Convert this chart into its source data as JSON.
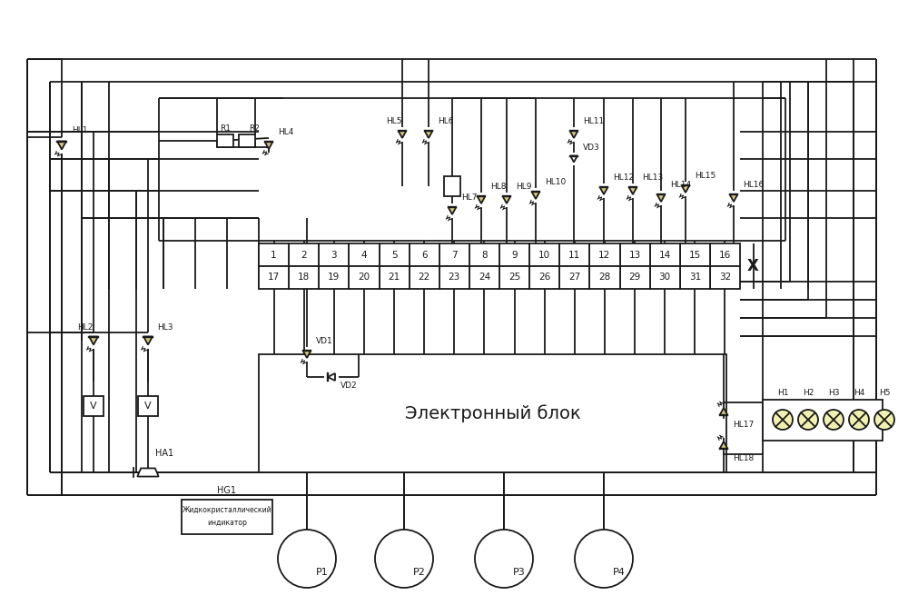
{
  "bg_color": "#ffffff",
  "lc": "#1a1a1a",
  "led_fill": "#d4c87a",
  "connector_numbers_top": [
    16,
    15,
    14,
    13,
    12,
    11,
    10,
    9,
    8,
    7,
    6,
    5,
    4,
    3,
    2,
    1
  ],
  "connector_numbers_bottom": [
    32,
    31,
    30,
    29,
    28,
    27,
    26,
    25,
    24,
    23,
    22,
    21,
    20,
    19,
    18,
    17
  ],
  "eb_label": "Электронный блок",
  "hg1_line1": "Жидкокристаллический",
  "hg1_line2": "индикатор",
  "gauges": [
    "P1",
    "P2",
    "P3",
    "P4"
  ],
  "lamps": [
    "H1",
    "H2",
    "H3",
    "H4",
    "H5"
  ],
  "lw": 1.3
}
